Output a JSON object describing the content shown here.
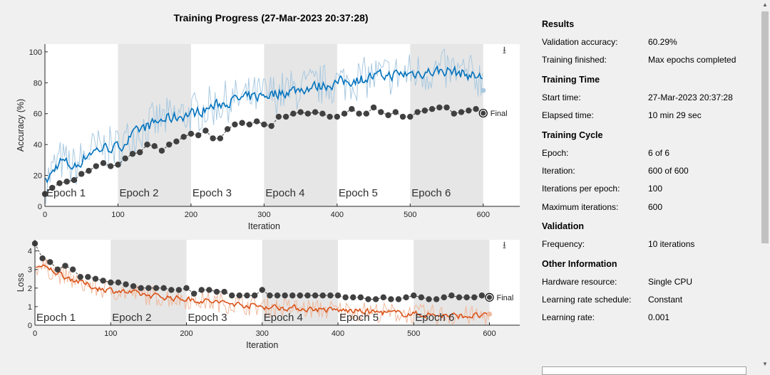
{
  "title": "Training Progress (27-Mar-2023 20:37:28)",
  "colors": {
    "accuracy": "#0072bd",
    "accuracy_light": "#a9c9e0",
    "loss": "#d95319",
    "loss_light": "#f0b89c",
    "validation": "#404040",
    "epoch_shade": "#e6e6e6"
  },
  "icons": {
    "export_top": "export-icon",
    "export_bottom": "export-icon"
  },
  "results": {
    "heading": "Results",
    "rows": [
      {
        "label": "Validation accuracy:",
        "value": "60.29%"
      },
      {
        "label": "Training finished:",
        "value": "Max epochs completed"
      }
    ]
  },
  "training_time": {
    "heading": "Training Time",
    "rows": [
      {
        "label": "Start time:",
        "value": "27-Mar-2023 20:37:28"
      },
      {
        "label": "Elapsed time:",
        "value": "10 min 29 sec"
      }
    ]
  },
  "training_cycle": {
    "heading": "Training Cycle",
    "rows": [
      {
        "label": "Epoch:",
        "value": "6 of 6"
      },
      {
        "label": "Iteration:",
        "value": "600 of 600"
      },
      {
        "label": "Iterations per epoch:",
        "value": "100"
      },
      {
        "label": "Maximum iterations:",
        "value": "600"
      }
    ]
  },
  "validation": {
    "heading": "Validation",
    "rows": [
      {
        "label": "Frequency:",
        "value": "10 iterations"
      }
    ]
  },
  "other_info": {
    "heading": "Other Information",
    "rows": [
      {
        "label": "Hardware resource:",
        "value": "Single CPU"
      },
      {
        "label": "Learning rate schedule:",
        "value": "Constant"
      },
      {
        "label": "Learning rate:",
        "value": "0.001"
      }
    ]
  },
  "chart_data": [
    {
      "type": "line",
      "ylabel": "Accuracy (%)",
      "xlabel": "Iteration",
      "xlim": [
        0,
        650
      ],
      "ylim": [
        0,
        105
      ],
      "xticks": [
        0,
        100,
        200,
        300,
        400,
        500,
        600
      ],
      "yticks": [
        0,
        20,
        40,
        60,
        80,
        100
      ],
      "epochs": [
        "Epoch 1",
        "Epoch 2",
        "Epoch 3",
        "Epoch 4",
        "Epoch 5",
        "Epoch 6"
      ],
      "iterations_per_epoch": 100,
      "final_label": "Final",
      "final_value": 60.29,
      "smoothed_anchors": {
        "x": [
          0,
          20,
          40,
          60,
          80,
          100,
          130,
          160,
          200,
          250,
          300,
          350,
          400,
          450,
          500,
          550,
          600
        ],
        "y": [
          15,
          30,
          25,
          35,
          38,
          38,
          50,
          56,
          60,
          68,
          72,
          76,
          80,
          84,
          86,
          88,
          83
        ]
      },
      "validation": {
        "x": [
          0,
          10,
          20,
          30,
          40,
          50,
          60,
          70,
          80,
          90,
          100,
          110,
          120,
          130,
          140,
          150,
          160,
          170,
          180,
          190,
          200,
          210,
          220,
          230,
          240,
          250,
          260,
          270,
          280,
          290,
          300,
          310,
          320,
          330,
          340,
          350,
          360,
          370,
          380,
          390,
          400,
          410,
          420,
          430,
          440,
          450,
          460,
          470,
          480,
          490,
          500,
          510,
          520,
          530,
          540,
          550,
          560,
          570,
          580,
          590,
          600
        ],
        "y": [
          8,
          12,
          15,
          16,
          17,
          21,
          23,
          26,
          28,
          26,
          27,
          31,
          34,
          35,
          40,
          39,
          36,
          40,
          42,
          45,
          47,
          46,
          49,
          44,
          44,
          50,
          53,
          54,
          53,
          55,
          53,
          52,
          58,
          58,
          60,
          61,
          60,
          61,
          60,
          58,
          58,
          60,
          63,
          60,
          60,
          64,
          61,
          59,
          61,
          58,
          58,
          61,
          62,
          63,
          64,
          64,
          60,
          61,
          62,
          63,
          60
        ]
      }
    },
    {
      "type": "line",
      "ylabel": "Loss",
      "xlabel": "Iteration",
      "xlim": [
        0,
        640
      ],
      "ylim": [
        0,
        4.6
      ],
      "xticks": [
        0,
        100,
        200,
        300,
        400,
        500,
        600
      ],
      "yticks": [
        0,
        1,
        2,
        3,
        4
      ],
      "epochs": [
        "Epoch 1",
        "Epoch 2",
        "Epoch 3",
        "Epoch 4",
        "Epoch 5",
        "Epoch 6"
      ],
      "iterations_per_epoch": 100,
      "final_label": "Final",
      "final_value": 1.5,
      "smoothed_anchors": {
        "x": [
          0,
          20,
          40,
          60,
          80,
          100,
          150,
          200,
          250,
          300,
          350,
          400,
          450,
          500,
          550,
          600
        ],
        "y": [
          3.2,
          3.0,
          2.6,
          2.3,
          2.0,
          1.9,
          1.6,
          1.4,
          1.2,
          1.0,
          0.9,
          0.8,
          0.7,
          0.6,
          0.5,
          0.5
        ]
      },
      "validation": {
        "x": [
          0,
          10,
          20,
          30,
          40,
          50,
          60,
          70,
          80,
          90,
          100,
          110,
          120,
          130,
          140,
          150,
          160,
          170,
          180,
          190,
          200,
          210,
          220,
          230,
          240,
          250,
          260,
          270,
          280,
          290,
          300,
          310,
          320,
          330,
          340,
          350,
          360,
          370,
          380,
          390,
          400,
          410,
          420,
          430,
          440,
          450,
          460,
          470,
          480,
          490,
          500,
          510,
          520,
          530,
          540,
          550,
          560,
          570,
          580,
          590,
          600
        ],
        "y": [
          4.4,
          3.6,
          3.4,
          3.0,
          3.2,
          3.0,
          2.6,
          2.6,
          2.5,
          2.4,
          2.3,
          2.3,
          2.2,
          2.1,
          2.0,
          2.0,
          2.0,
          2.0,
          1.9,
          1.9,
          2.0,
          1.7,
          1.9,
          1.9,
          1.8,
          1.8,
          1.6,
          1.6,
          1.6,
          1.6,
          1.9,
          1.6,
          1.6,
          1.6,
          1.6,
          1.6,
          1.6,
          1.6,
          1.6,
          1.6,
          1.6,
          1.5,
          1.5,
          1.5,
          1.4,
          1.4,
          1.5,
          1.4,
          1.4,
          1.5,
          1.6,
          1.5,
          1.4,
          1.4,
          1.5,
          1.6,
          1.5,
          1.5,
          1.5,
          1.6,
          1.5
        ]
      }
    }
  ]
}
